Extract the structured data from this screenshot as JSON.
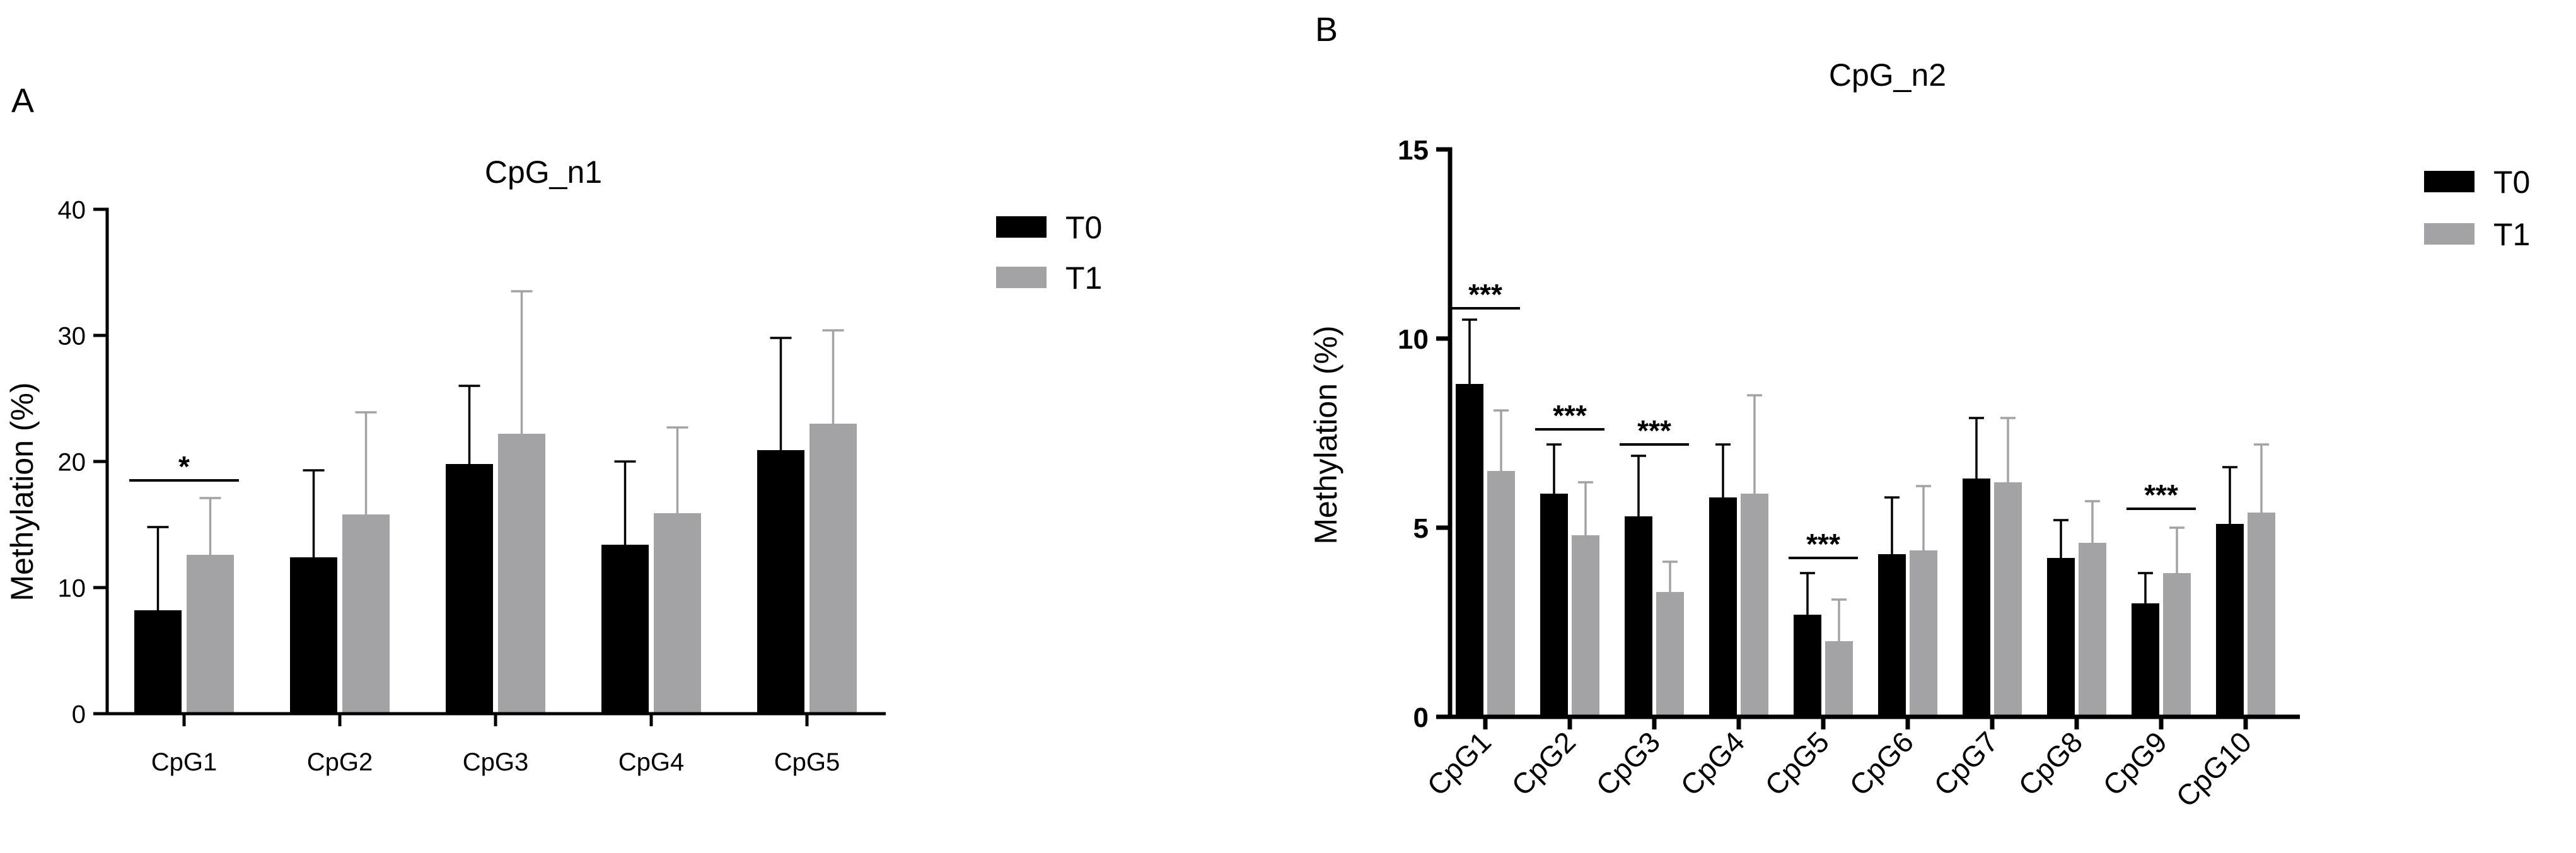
{
  "chart_data": [
    {
      "panel_label": "A",
      "type": "bar",
      "title": "CpG_n1",
      "xlabel": "",
      "ylabel": "Methylation (%)",
      "ylim": [
        0,
        40
      ],
      "yticks": [
        0,
        10,
        20,
        30,
        40
      ],
      "categories": [
        "CpG1",
        "CpG2",
        "CpG3",
        "CpG4",
        "CpG5"
      ],
      "series": [
        {
          "name": "T0",
          "color": "#000000",
          "values": [
            8.2,
            12.4,
            19.8,
            13.4,
            20.9
          ],
          "errors": [
            6.6,
            6.9,
            6.2,
            6.6,
            8.9
          ]
        },
        {
          "name": "T1",
          "color": "#a3a3a6",
          "values": [
            12.6,
            15.8,
            22.2,
            15.9,
            23.0
          ],
          "errors": [
            4.5,
            8.1,
            11.3,
            6.8,
            7.4
          ]
        }
      ],
      "significance": [
        {
          "category_index": 0,
          "label": "*",
          "y": 18.5
        }
      ],
      "legend_position": "top-right",
      "grid": false
    },
    {
      "panel_label": "B",
      "type": "bar",
      "title": "CpG_n2",
      "xlabel": "",
      "ylabel": "Methylation (%)",
      "ylim": [
        0,
        15
      ],
      "yticks": [
        0,
        5,
        10,
        15
      ],
      "categories": [
        "CpG1",
        "CpG2",
        "CpG3",
        "CpG4",
        "CpG5",
        "CpG6",
        "CpG7",
        "CpG8",
        "CpG9",
        "CpG10"
      ],
      "series": [
        {
          "name": "T0",
          "color": "#000000",
          "values": [
            8.8,
            5.9,
            5.3,
            5.8,
            2.7,
            4.3,
            6.3,
            4.2,
            3.0,
            5.1
          ],
          "errors": [
            1.7,
            1.3,
            1.6,
            1.4,
            1.1,
            1.5,
            1.6,
            1.0,
            0.8,
            1.5
          ]
        },
        {
          "name": "T1",
          "color": "#a3a3a6",
          "values": [
            6.5,
            4.8,
            3.3,
            5.9,
            2.0,
            4.4,
            6.2,
            4.6,
            3.8,
            5.4
          ],
          "errors": [
            1.6,
            1.4,
            0.8,
            2.6,
            1.1,
            1.7,
            1.7,
            1.1,
            1.2,
            1.8
          ]
        }
      ],
      "significance": [
        {
          "category_index": 0,
          "label": "***",
          "y": 10.8
        },
        {
          "category_index": 1,
          "label": "***",
          "y": 7.6
        },
        {
          "category_index": 2,
          "label": "***",
          "y": 7.2
        },
        {
          "category_index": 4,
          "label": "***",
          "y": 4.2
        },
        {
          "category_index": 8,
          "label": "***",
          "y": 5.5
        }
      ],
      "legend_position": "top-right",
      "grid": false
    }
  ]
}
